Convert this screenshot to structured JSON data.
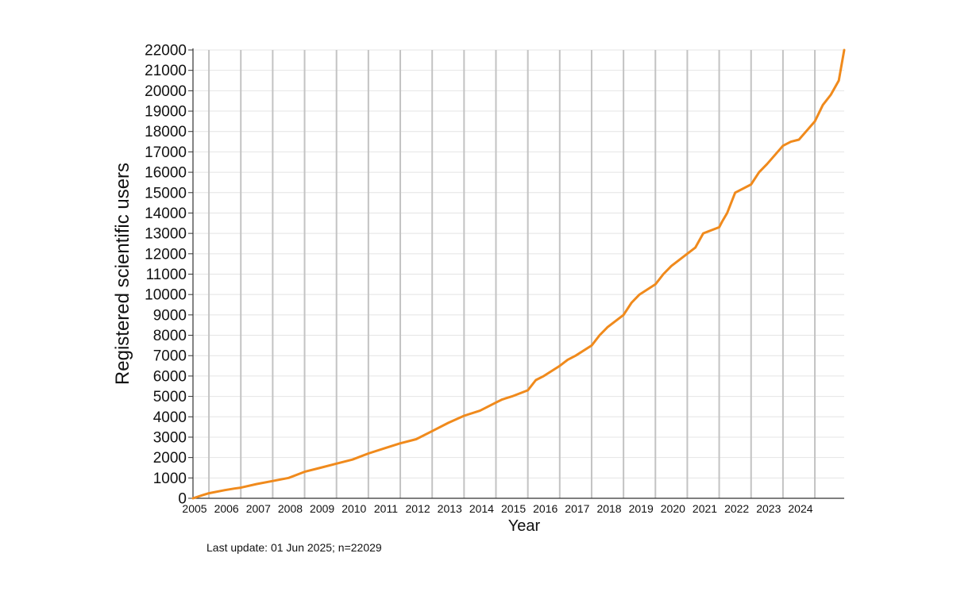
{
  "chart_data": {
    "type": "line",
    "title": "",
    "xlabel": "Year",
    "ylabel": "Registered scientific users",
    "xlim": [
      2005.0,
      2025.42
    ],
    "ylim": [
      0,
      22000
    ],
    "yticks": [
      0,
      1000,
      2000,
      3000,
      4000,
      5000,
      6000,
      7000,
      8000,
      9000,
      10000,
      11000,
      12000,
      13000,
      14000,
      15000,
      16000,
      17000,
      18000,
      19000,
      20000,
      21000,
      22000
    ],
    "xticks": [
      "2005",
      "2006",
      "2007",
      "2008",
      "2009",
      "2010",
      "2011",
      "2012",
      "2013",
      "2014",
      "2015",
      "2016",
      "2017",
      "2018",
      "2019",
      "2020",
      "2021",
      "2022",
      "2023",
      "2024"
    ],
    "x_grid_lines": [
      2005.5,
      2006.5,
      2007.5,
      2008.5,
      2009.5,
      2010.5,
      2011.5,
      2012.5,
      2013.5,
      2014.5,
      2015.5,
      2016.5,
      2017.5,
      2018.5,
      2019.5,
      2020.5,
      2021.5,
      2022.5,
      2023.5,
      2024.5
    ],
    "grid": true,
    "line_color": "#f08a1c",
    "series": [
      {
        "x": [
          2005.0,
          2005.3,
          2005.5,
          2006.0,
          2006.3,
          2006.5,
          2007.0,
          2007.5,
          2008.0,
          2008.5,
          2009.0,
          2009.5,
          2010.0,
          2010.5,
          2011.0,
          2011.5,
          2012.0,
          2012.5,
          2013.0,
          2013.5,
          2014.0,
          2014.5,
          2014.7,
          2015.0,
          2015.5,
          2015.75,
          2016.0,
          2016.5,
          2016.75,
          2017.0,
          2017.5,
          2017.75,
          2018.0,
          2018.5,
          2018.75,
          2019.0,
          2019.5,
          2019.75,
          2020.0,
          2020.5,
          2020.75,
          2021.0,
          2021.5,
          2021.6,
          2021.75,
          2022.0,
          2022.5,
          2022.75,
          2023.0,
          2023.5,
          2023.75,
          2024.0,
          2024.5,
          2024.75,
          2025.0,
          2025.25,
          2025.42
        ],
        "values": [
          0,
          150,
          250,
          400,
          480,
          520,
          700,
          850,
          1000,
          1300,
          1500,
          1700,
          1900,
          2200,
          2450,
          2700,
          2900,
          3300,
          3700,
          4050,
          4300,
          4700,
          4850,
          5000,
          5300,
          5800,
          6000,
          6500,
          6800,
          7000,
          7500,
          8000,
          8400,
          9000,
          9600,
          10000,
          10500,
          11000,
          11400,
          12000,
          12300,
          13000,
          13300,
          13600,
          14000,
          15000,
          15400,
          16000,
          16400,
          17300,
          17500,
          17600,
          18500,
          19300,
          19800,
          20500,
          22000
        ]
      }
    ],
    "footnote": "Last update: 01 Jun 2025; n=22029"
  }
}
